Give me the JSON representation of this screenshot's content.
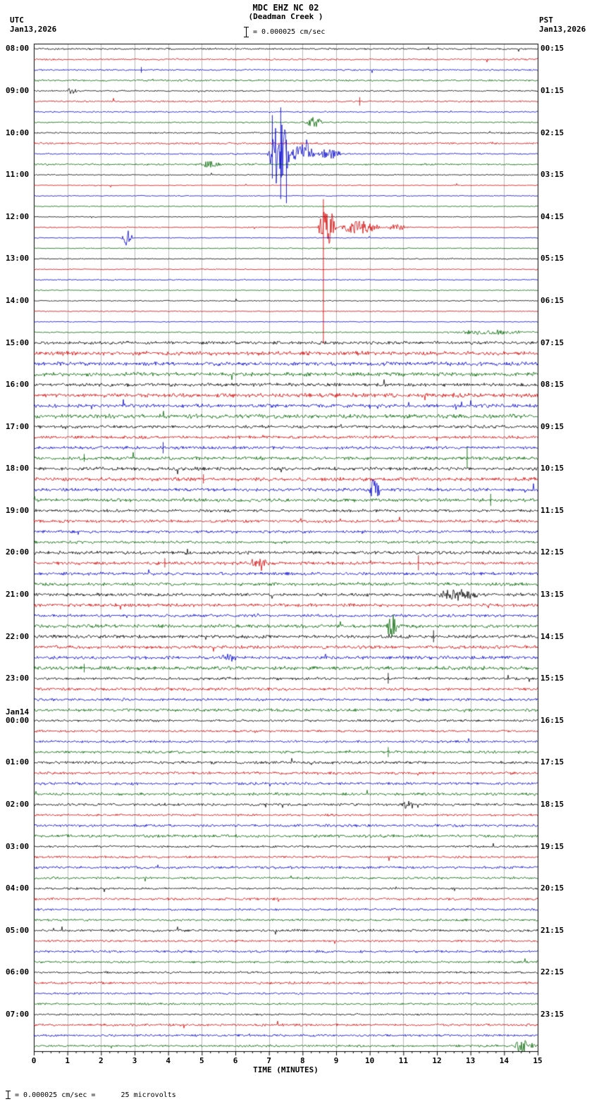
{
  "header": {
    "title": "MDC EHZ NC 02",
    "subtitle": "(Deadman Creek )",
    "scale_label": "= 0.000025 cm/sec",
    "utc": {
      "zone": "UTC",
      "date": "Jan13,2026"
    },
    "pst": {
      "zone": "PST",
      "date": "Jan13,2026"
    }
  },
  "footer": {
    "note": "= 0.000025 cm/sec =      25 microvolts"
  },
  "chart_data": {
    "type": "line",
    "subtype": "helicorder-seismogram",
    "station": "MDC EHZ NC 02",
    "location": "(Deadman Creek )",
    "xlabel": "TIME (MINUTES)",
    "x_range": [
      0,
      15
    ],
    "x_ticks": [
      "0",
      "1",
      "2",
      "3",
      "4",
      "5",
      "6",
      "7",
      "8",
      "9",
      "10",
      "11",
      "12",
      "13",
      "14",
      "15"
    ],
    "rows": 96,
    "minutes_per_row": 15,
    "grid": "vertical-minute-lines",
    "trace_color_cycle": [
      "#000000",
      "#d40000",
      "#0000cc",
      "#006600"
    ],
    "utc_labels": [
      {
        "row": 0,
        "label": "08:00"
      },
      {
        "row": 4,
        "label": "09:00"
      },
      {
        "row": 8,
        "label": "10:00"
      },
      {
        "row": 12,
        "label": "11:00"
      },
      {
        "row": 16,
        "label": "12:00"
      },
      {
        "row": 20,
        "label": "13:00"
      },
      {
        "row": 24,
        "label": "14:00"
      },
      {
        "row": 28,
        "label": "15:00"
      },
      {
        "row": 32,
        "label": "16:00"
      },
      {
        "row": 36,
        "label": "17:00"
      },
      {
        "row": 40,
        "label": "18:00"
      },
      {
        "row": 44,
        "label": "19:00"
      },
      {
        "row": 48,
        "label": "20:00"
      },
      {
        "row": 52,
        "label": "21:00"
      },
      {
        "row": 56,
        "label": "22:00"
      },
      {
        "row": 60,
        "label": "23:00"
      },
      {
        "row": 64,
        "label": "00:00",
        "prefix": "Jan14"
      },
      {
        "row": 68,
        "label": "01:00"
      },
      {
        "row": 72,
        "label": "02:00"
      },
      {
        "row": 76,
        "label": "03:00"
      },
      {
        "row": 80,
        "label": "04:00"
      },
      {
        "row": 84,
        "label": "05:00"
      },
      {
        "row": 88,
        "label": "06:00"
      },
      {
        "row": 92,
        "label": "07:00"
      }
    ],
    "pst_labels": [
      {
        "row": 0,
        "label": "00:15"
      },
      {
        "row": 4,
        "label": "01:15"
      },
      {
        "row": 8,
        "label": "02:15"
      },
      {
        "row": 12,
        "label": "03:15"
      },
      {
        "row": 16,
        "label": "04:15"
      },
      {
        "row": 20,
        "label": "05:15"
      },
      {
        "row": 24,
        "label": "06:15"
      },
      {
        "row": 28,
        "label": "07:15"
      },
      {
        "row": 32,
        "label": "08:15"
      },
      {
        "row": 36,
        "label": "09:15"
      },
      {
        "row": 40,
        "label": "10:15"
      },
      {
        "row": 44,
        "label": "11:15"
      },
      {
        "row": 48,
        "label": "12:15"
      },
      {
        "row": 52,
        "label": "13:15"
      },
      {
        "row": 56,
        "label": "14:15"
      },
      {
        "row": 60,
        "label": "15:15"
      },
      {
        "row": 64,
        "label": "16:15"
      },
      {
        "row": 68,
        "label": "17:15"
      },
      {
        "row": 72,
        "label": "18:15"
      },
      {
        "row": 76,
        "label": "19:15"
      },
      {
        "row": 80,
        "label": "20:15"
      },
      {
        "row": 84,
        "label": "21:15"
      },
      {
        "row": 88,
        "label": "22:15"
      },
      {
        "row": 92,
        "label": "23:15"
      }
    ],
    "noise_levels": [
      {
        "from": 0,
        "to": 11,
        "amp": 1.4
      },
      {
        "from": 12,
        "to": 27,
        "amp": 0.9
      },
      {
        "from": 28,
        "to": 35,
        "amp": 3.0
      },
      {
        "from": 36,
        "to": 63,
        "amp": 2.6
      },
      {
        "from": 64,
        "to": 79,
        "amp": 2.1
      },
      {
        "from": 80,
        "to": 95,
        "amp": 1.8
      }
    ],
    "events": [
      {
        "row": 4,
        "x0": 0.95,
        "x1": 1.3,
        "amp": 4
      },
      {
        "row": 7,
        "x0": 8.05,
        "x1": 8.65,
        "amp": 7
      },
      {
        "row": 10,
        "x0": 6.95,
        "x1": 7.65,
        "amp": 50
      },
      {
        "row": 10,
        "x0": 7.65,
        "x1": 8.4,
        "amp": 22
      },
      {
        "row": 10,
        "x0": 8.4,
        "x1": 9.2,
        "amp": 7
      },
      {
        "row": 11,
        "x0": 4.85,
        "x1": 5.65,
        "amp": 5
      },
      {
        "row": 17,
        "x0": 8.45,
        "x1": 9.0,
        "amp": 34
      },
      {
        "row": 17,
        "x0": 9.0,
        "x1": 10.4,
        "amp": 9
      },
      {
        "row": 17,
        "x0": 10.4,
        "x1": 11.2,
        "amp": 4
      },
      {
        "row": 18,
        "x0": 2.6,
        "x1": 2.95,
        "amp": 12
      },
      {
        "row": 27,
        "x0": 12.0,
        "x1": 15.0,
        "amp": 3
      },
      {
        "row": 42,
        "x0": 9.95,
        "x1": 10.35,
        "amp": 20
      },
      {
        "row": 48,
        "x0": 4.45,
        "x1": 4.75,
        "amp": 5
      },
      {
        "row": 49,
        "x0": 6.35,
        "x1": 7.05,
        "amp": 7
      },
      {
        "row": 52,
        "x0": 11.85,
        "x1": 13.4,
        "amp": 8
      },
      {
        "row": 55,
        "x0": 10.45,
        "x1": 10.85,
        "amp": 18
      },
      {
        "row": 58,
        "x0": 5.55,
        "x1": 6.05,
        "amp": 5
      },
      {
        "row": 72,
        "x0": 10.95,
        "x1": 11.35,
        "amp": 7
      },
      {
        "row": 95,
        "x0": 14.25,
        "x1": 14.95,
        "amp": 11
      }
    ],
    "spikes": [
      {
        "row": 2,
        "x": 3.2,
        "up": 4,
        "down": 4
      },
      {
        "row": 5,
        "x": 9.7,
        "up": 6,
        "down": 6
      },
      {
        "row": 10,
        "x": 7.1,
        "up": 55,
        "down": 35
      },
      {
        "row": 10,
        "x": 7.35,
        "up": 66,
        "down": 64
      },
      {
        "row": 10,
        "x": 7.52,
        "up": 20,
        "down": 70
      },
      {
        "row": 17,
        "x": 8.62,
        "up": 40,
        "down": 165
      },
      {
        "row": 38,
        "x": 3.85,
        "up": 8,
        "down": 8
      },
      {
        "row": 39,
        "x": 1.5,
        "up": 6,
        "down": 5
      },
      {
        "row": 39,
        "x": 12.9,
        "up": 16,
        "down": 14
      },
      {
        "row": 41,
        "x": 5.05,
        "up": 7,
        "down": 6
      },
      {
        "row": 43,
        "x": 13.6,
        "up": 9,
        "down": 8
      },
      {
        "row": 49,
        "x": 3.9,
        "up": 7,
        "down": 6
      },
      {
        "row": 49,
        "x": 11.45,
        "up": 11,
        "down": 10
      },
      {
        "row": 56,
        "x": 11.9,
        "up": 9,
        "down": 8
      },
      {
        "row": 59,
        "x": 1.5,
        "up": 6,
        "down": 6
      },
      {
        "row": 60,
        "x": 10.55,
        "up": 8,
        "down": 7
      },
      {
        "row": 67,
        "x": 10.55,
        "up": 7,
        "down": 7
      }
    ]
  }
}
